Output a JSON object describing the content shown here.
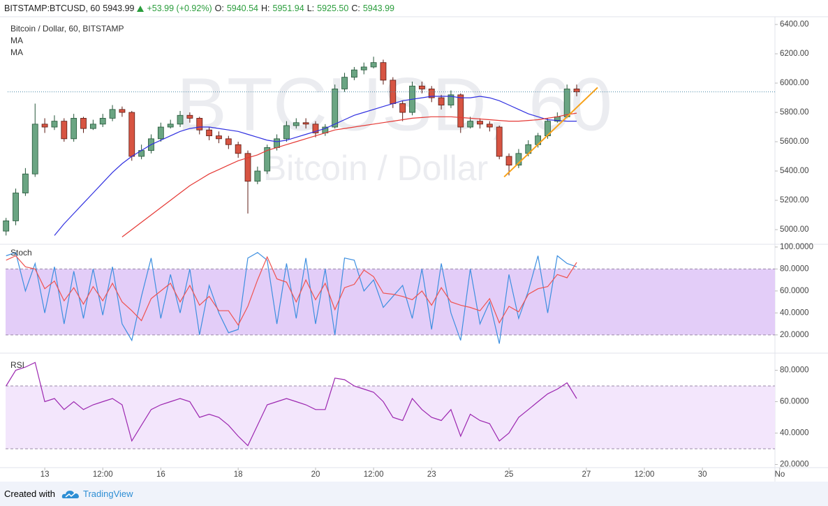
{
  "header": {
    "symbol": "BITSTAMP:BTCUSD, 60",
    "last": "5943.99",
    "change": "+53.99 (+0.92%)",
    "o_label": "O:",
    "o": "5940.54",
    "h_label": "H:",
    "h": "5951.94",
    "l_label": "L:",
    "l": "5925.50",
    "c_label": "C:",
    "c": "5943.99"
  },
  "footer": {
    "created": "Created with",
    "brand": "TradingView"
  },
  "chart_data": [
    {
      "type": "candlestick",
      "title": "Bitcoin / Dollar, 60, BITSTAMP",
      "watermark": "BTCUSD, 60",
      "watermark_sub": "Bitcoin / Dollar",
      "up_color": "#6ba583",
      "down_color": "#d75442",
      "last_price_line": true,
      "x": [
        -24,
        -18,
        -12,
        -6,
        0,
        6,
        12,
        18,
        24,
        30,
        36,
        42,
        48,
        54,
        60,
        66,
        72,
        78,
        84,
        90,
        96,
        102,
        108,
        114,
        120,
        126,
        132,
        138,
        144,
        150,
        156,
        162,
        168,
        174,
        180,
        186,
        192,
        198,
        204,
        210,
        216,
        222,
        228,
        234,
        240,
        246,
        252,
        258,
        264,
        270,
        276,
        282,
        288,
        294,
        300,
        306,
        312,
        318,
        324,
        330
      ],
      "open": [
        4990,
        5060,
        5250,
        5380,
        5720,
        5700,
        5740,
        5620,
        5760,
        5690,
        5720,
        5760,
        5820,
        5800,
        5500,
        5540,
        5620,
        5700,
        5720,
        5780,
        5760,
        5680,
        5640,
        5620,
        5580,
        5520,
        5330,
        5400,
        5560,
        5620,
        5710,
        5730,
        5720,
        5660,
        5700,
        5960,
        6040,
        6090,
        6110,
        6140,
        6020,
        5860,
        5800,
        5980,
        5960,
        5900,
        5850,
        5920,
        5700,
        5740,
        5720,
        5700,
        5500,
        5440,
        5520,
        5580,
        5640,
        5740,
        5770,
        5960
      ],
      "high": [
        5080,
        5280,
        5420,
        5860,
        5760,
        5780,
        5760,
        5790,
        5770,
        5750,
        5790,
        5850,
        5840,
        5810,
        5580,
        5650,
        5730,
        5750,
        5810,
        5800,
        5770,
        5700,
        5670,
        5640,
        5600,
        5540,
        5430,
        5580,
        5650,
        5740,
        5760,
        5760,
        5740,
        5720,
        5990,
        6070,
        6110,
        6140,
        6180,
        6160,
        6040,
        5880,
        6010,
        6010,
        5980,
        5920,
        5950,
        5930,
        5770,
        5760,
        5740,
        5710,
        5520,
        5550,
        5610,
        5660,
        5760,
        5800,
        5990,
        5990
      ],
      "low": [
        4960,
        5030,
        5230,
        5360,
        5660,
        5680,
        5600,
        5600,
        5660,
        5680,
        5700,
        5740,
        5770,
        5470,
        5480,
        5520,
        5600,
        5690,
        5700,
        5730,
        5650,
        5610,
        5590,
        5550,
        5490,
        5110,
        5310,
        5380,
        5540,
        5600,
        5690,
        5690,
        5630,
        5640,
        5690,
        5940,
        6020,
        6060,
        6100,
        5990,
        5830,
        5740,
        5780,
        5930,
        5870,
        5820,
        5830,
        5660,
        5690,
        5690,
        5670,
        5480,
        5370,
        5420,
        5500,
        5560,
        5620,
        5730,
        5760,
        5910
      ],
      "close": [
        5060,
        5250,
        5380,
        5720,
        5700,
        5740,
        5620,
        5760,
        5690,
        5720,
        5760,
        5820,
        5800,
        5500,
        5540,
        5620,
        5700,
        5720,
        5780,
        5760,
        5680,
        5640,
        5620,
        5580,
        5520,
        5330,
        5400,
        5560,
        5620,
        5710,
        5730,
        5720,
        5660,
        5700,
        5960,
        6040,
        6090,
        6110,
        6140,
        6020,
        5860,
        5800,
        5980,
        5960,
        5900,
        5850,
        5920,
        5700,
        5740,
        5720,
        5700,
        5500,
        5440,
        5520,
        5580,
        5640,
        5740,
        5770,
        5960,
        5940
      ],
      "series": [
        {
          "name": "MA",
          "color": "#3030e0",
          "values": [
            null,
            null,
            null,
            null,
            null,
            4960,
            5040,
            5110,
            5180,
            5250,
            5320,
            5390,
            5450,
            5500,
            5540,
            5580,
            5610,
            5640,
            5670,
            5690,
            5700,
            5700,
            5690,
            5680,
            5670,
            5650,
            5630,
            5610,
            5600,
            5610,
            5630,
            5650,
            5670,
            5690,
            5720,
            5750,
            5780,
            5800,
            5820,
            5840,
            5860,
            5880,
            5890,
            5900,
            5910,
            5910,
            5910,
            5900,
            5900,
            5910,
            5900,
            5880,
            5850,
            5820,
            5790,
            5770,
            5750,
            5745,
            5740,
            5740
          ]
        },
        {
          "name": "MA",
          "color": "#e53935",
          "values": [
            null,
            null,
            null,
            null,
            null,
            null,
            null,
            null,
            null,
            null,
            null,
            null,
            4950,
            5000,
            5050,
            5100,
            5150,
            5200,
            5250,
            5300,
            5340,
            5380,
            5410,
            5440,
            5470,
            5490,
            5510,
            5540,
            5560,
            5580,
            5600,
            5620,
            5640,
            5660,
            5680,
            5690,
            5700,
            5710,
            5720,
            5730,
            5740,
            5750,
            5760,
            5765,
            5770,
            5770,
            5770,
            5765,
            5760,
            5755,
            5750,
            5745,
            5740,
            5740,
            5745,
            5750,
            5760,
            5770,
            5785,
            5795
          ]
        }
      ],
      "trendline": {
        "x": [
          285,
          343
        ],
        "values": [
          5360,
          5970
        ],
        "color": "#f7a21b"
      },
      "xlim": [
        -23,
        453
      ],
      "ylim": [
        4900,
        6448
      ],
      "yticks": [
        {
          "value": 5000,
          "label": "5000.00"
        },
        {
          "value": 5200,
          "label": "5200.00"
        },
        {
          "value": 5400,
          "label": "5400.00"
        },
        {
          "value": 5600,
          "label": "5600.00"
        },
        {
          "value": 5800,
          "label": "5800.00"
        },
        {
          "value": 6000,
          "label": "6000.00"
        },
        {
          "value": 6200,
          "label": "6200.00"
        },
        {
          "value": 6400,
          "label": "6400.00"
        }
      ]
    },
    {
      "type": "line",
      "title": "Stoch",
      "band": [
        20,
        80
      ],
      "band_color": "#e3cdf8",
      "series": [
        {
          "color": "#3d8fe0",
          "values": [
            92,
            95,
            60,
            85,
            40,
            82,
            30,
            78,
            35,
            80,
            38,
            82,
            30,
            15,
            55,
            90,
            35,
            75,
            40,
            80,
            20,
            65,
            40,
            22,
            25,
            90,
            95,
            88,
            30,
            85,
            35,
            90,
            30,
            80,
            20,
            90,
            88,
            60,
            70,
            45,
            55,
            65,
            35,
            80,
            25,
            85,
            40,
            15,
            80,
            30,
            50,
            12,
            75,
            35,
            60,
            92,
            40,
            92,
            85,
            82
          ]
        },
        {
          "color": "#ef5350",
          "values": [
            88,
            92,
            82,
            80,
            62,
            69,
            51,
            63,
            48,
            64,
            51,
            67,
            50,
            42,
            33,
            53,
            60,
            67,
            50,
            65,
            47,
            55,
            42,
            42,
            29,
            46,
            70,
            91,
            71,
            68,
            50,
            70,
            52,
            67,
            43,
            63,
            66,
            79,
            73,
            58,
            57,
            55,
            52,
            60,
            47,
            63,
            50,
            47,
            45,
            42,
            53,
            31,
            46,
            41,
            57,
            62,
            64,
            75,
            72,
            86
          ]
        }
      ],
      "ylim": [
        4,
        102.5
      ],
      "yticks": [
        {
          "value": 20,
          "label": "20.0000"
        },
        {
          "value": 40,
          "label": "40.0000"
        },
        {
          "value": 60,
          "label": "60.0000"
        },
        {
          "value": 80,
          "label": "80.0000"
        },
        {
          "value": 100,
          "label": "100.0000"
        }
      ]
    },
    {
      "type": "line",
      "title": "RSI",
      "band": [
        30,
        70
      ],
      "band_color": "#f3e6fc",
      "series": [
        {
          "color": "#9c27b0",
          "values": [
            70,
            80,
            82,
            85,
            60,
            62,
            55,
            60,
            55,
            58,
            60,
            62,
            58,
            35,
            45,
            55,
            58,
            60,
            62,
            60,
            50,
            52,
            50,
            45,
            38,
            32,
            45,
            58,
            60,
            62,
            60,
            58,
            55,
            55,
            75,
            74,
            70,
            68,
            66,
            60,
            50,
            48,
            62,
            55,
            50,
            48,
            55,
            38,
            52,
            48,
            46,
            35,
            40,
            50,
            55,
            60,
            65,
            68,
            72,
            62
          ]
        }
      ],
      "ylim": [
        18,
        90
      ],
      "yticks": [
        {
          "value": 20,
          "label": "20.0000"
        },
        {
          "value": 40,
          "label": "40.0000"
        },
        {
          "value": 60,
          "label": "60.0000"
        },
        {
          "value": 80,
          "label": "80.0000"
        }
      ],
      "xticks": [
        {
          "value": 0,
          "label": "13"
        },
        {
          "value": 36,
          "label": "12:00"
        },
        {
          "value": 72,
          "label": "16"
        },
        {
          "value": 120,
          "label": "18"
        },
        {
          "value": 168,
          "label": "20"
        },
        {
          "value": 204,
          "label": "12:00"
        },
        {
          "value": 240,
          "label": "23"
        },
        {
          "value": 288,
          "label": "25"
        },
        {
          "value": 336,
          "label": "27"
        },
        {
          "value": 372,
          "label": "12:00"
        },
        {
          "value": 408,
          "label": "30"
        },
        {
          "value": 456,
          "label": "No"
        }
      ]
    }
  ]
}
